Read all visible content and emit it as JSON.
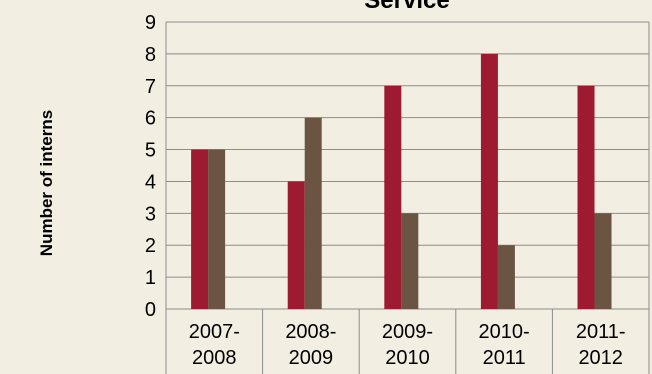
{
  "chart_data": {
    "type": "bar",
    "title": "Service",
    "xlabel": "",
    "ylabel": "Number of interns",
    "categories": [
      "2007-2008",
      "2008-2009",
      "2009-2010",
      "2010-2011",
      "2011-2012"
    ],
    "category_lines": [
      [
        "2007-",
        "2008"
      ],
      [
        "2008-",
        "2009"
      ],
      [
        "2009-",
        "2010"
      ],
      [
        "2010-",
        "2011"
      ],
      [
        "2011-",
        "2012"
      ]
    ],
    "series": [
      {
        "values": [
          5,
          4,
          7,
          8,
          7
        ],
        "color": "#9e1a31"
      },
      {
        "values": [
          5,
          6,
          3,
          2,
          3
        ],
        "color": "#6b5442"
      }
    ],
    "ylim": [
      0,
      9
    ],
    "yticks": [
      "0",
      "1",
      "2",
      "3",
      "4",
      "5",
      "6",
      "7",
      "8",
      "9"
    ],
    "grid": true,
    "legend": "none",
    "colors": {
      "background": "#f2eee2",
      "grid": "#8c8c8c"
    }
  }
}
